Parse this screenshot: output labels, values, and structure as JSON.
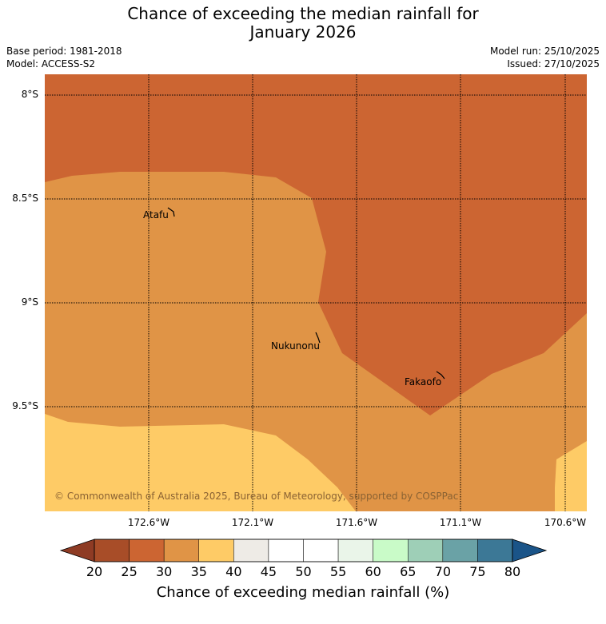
{
  "title_line1": "Chance of exceeding the median rainfall for",
  "title_line2": "January 2026",
  "base_period": "Base period: 1981-2018",
  "model": "Model: ACCESS-S2",
  "model_run": "Model run: 25/10/2025",
  "issued": "Issued: 27/10/2025",
  "lat_labels": [
    "8°S",
    "8.5°S",
    "9°S",
    "9.5°S"
  ],
  "lon_labels": [
    "172.6°W",
    "172.1°W",
    "171.6°W",
    "171.1°W",
    "170.6°W"
  ],
  "places": {
    "atafu": "Atafu",
    "nukunonu": "Nukunonu",
    "fakaofo": "Fakaofo"
  },
  "copyright": "© Commonwealth of Australia 2025, Bureau of Meteorology, supported by COSPPac",
  "colorbar": {
    "ticks": [
      "20",
      "25",
      "30",
      "35",
      "40",
      "45",
      "50",
      "55",
      "60",
      "65",
      "70",
      "75",
      "80"
    ],
    "colors": [
      "#a84d28",
      "#cc6532",
      "#e09446",
      "#fecb66",
      "#eeebe6",
      "#ffffff",
      "#ffffff",
      "#eaf5e9",
      "#c9fbc8",
      "#9ecfb7",
      "#6aa2a6",
      "#3c7896"
    ],
    "under_color": "#8e3b24",
    "over_color": "#1a5488",
    "label": "Chance of exceeding median rainfall (%)"
  },
  "map_colors": {
    "band_25_30": "#cc6532",
    "band_30_35": "#e09446",
    "band_35_40": "#fecb66"
  }
}
